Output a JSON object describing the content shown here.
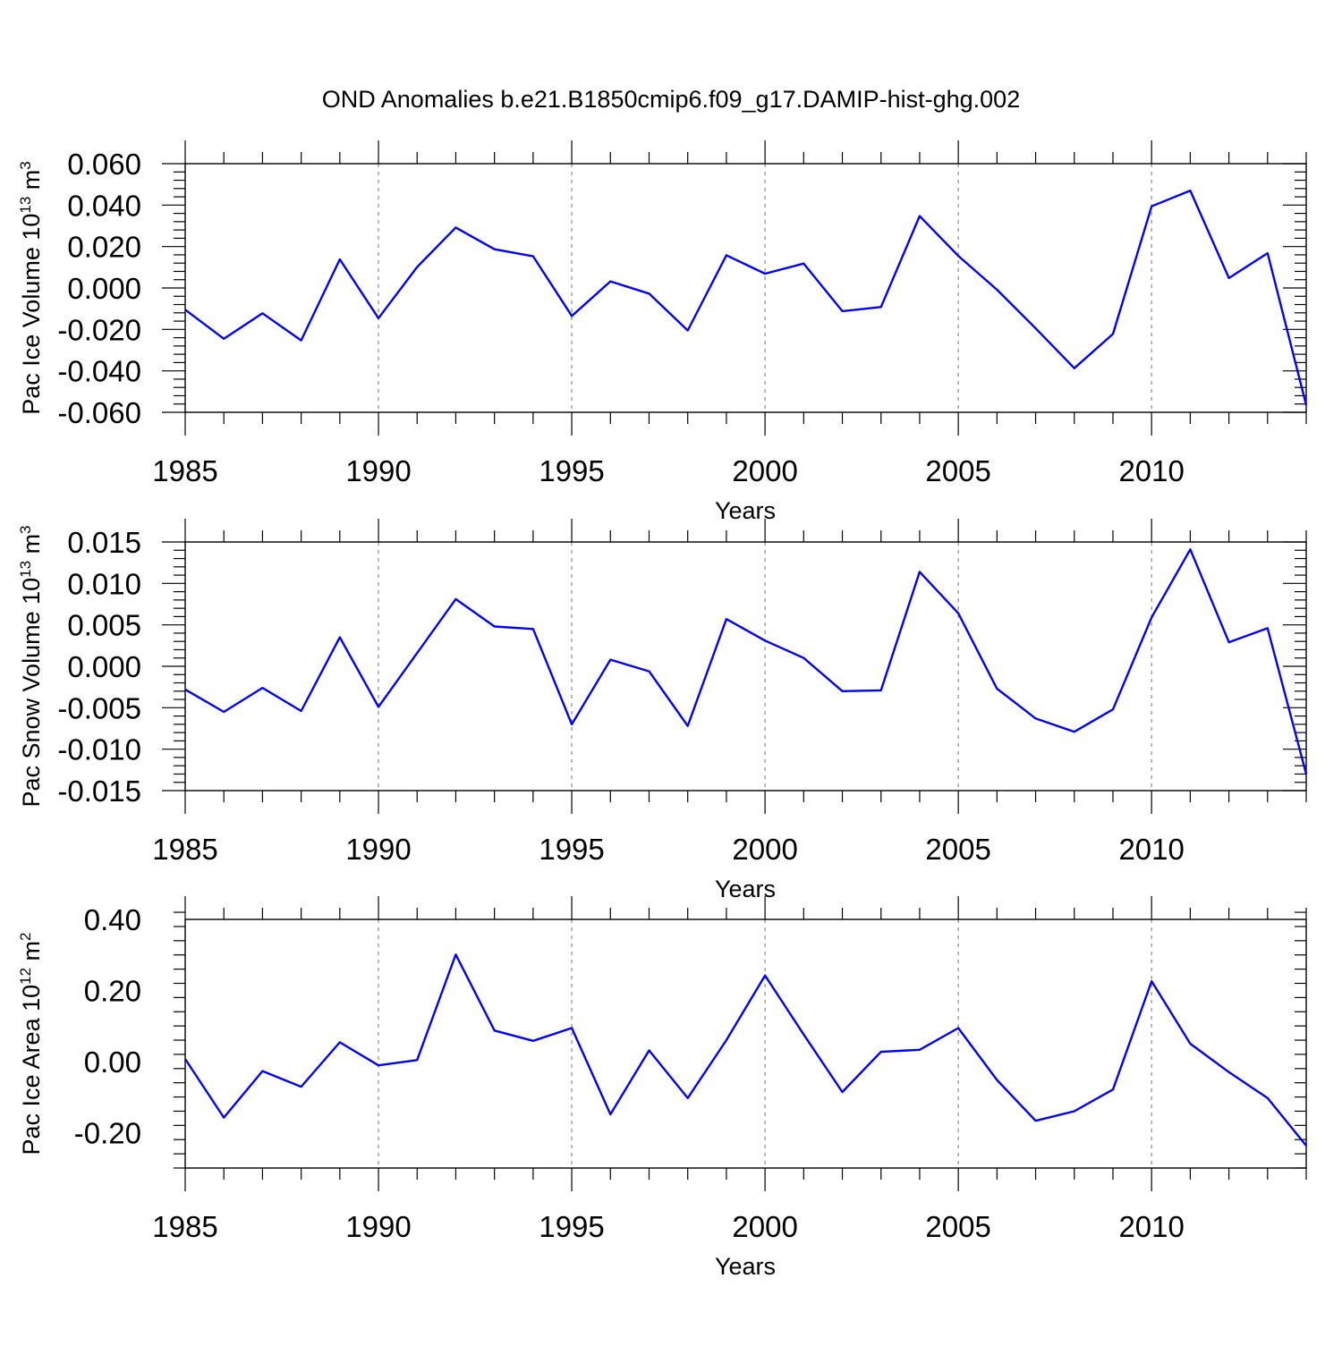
{
  "title": "OND Anomalies b.e21.B1850cmip6.f09_g17.DAMIP-hist-ghg.002",
  "line_color": "#0000ff",
  "chart_data": [
    {
      "type": "line",
      "ylabel_main": "Pac Ice Volume 10",
      "ylabel_exp": "13",
      "ylabel_unit": " m",
      "ylabel_unit_exp": "3",
      "xlabel": "Years",
      "xlim": [
        1985,
        2014
      ],
      "ylim": [
        -0.06,
        0.06
      ],
      "grid": "vertical dashed at major x ticks",
      "xticks": [
        1985,
        1990,
        1995,
        2000,
        2005,
        2010
      ],
      "xtick_labels": [
        "1985",
        "1990",
        "1995",
        "2000",
        "2005",
        "2010"
      ],
      "yticks": [
        0.06,
        0.04,
        0.02,
        0.0,
        -0.02,
        -0.04,
        -0.06
      ],
      "ytick_labels": [
        "0.060",
        "0.040",
        "0.020",
        "0.000",
        "-0.020",
        "-0.040",
        "-0.060"
      ],
      "x": [
        1985,
        1986,
        1987,
        1988,
        1989,
        1990,
        1991,
        1992,
        1993,
        1994,
        1995,
        1996,
        1997,
        1998,
        1999,
        2000,
        2001,
        2002,
        2003,
        2004,
        2005,
        2006,
        2007,
        2008,
        2009,
        2010,
        2011,
        2012,
        2013,
        2014
      ],
      "y": [
        -0.0105,
        -0.0245,
        -0.0122,
        -0.0253,
        0.0138,
        -0.0146,
        0.0101,
        0.0292,
        0.0187,
        0.0153,
        -0.0135,
        0.0032,
        -0.0027,
        -0.0205,
        0.0158,
        0.0069,
        0.0118,
        -0.0112,
        -0.0092,
        0.0347,
        0.0155,
        -0.0008,
        -0.0195,
        -0.0387,
        -0.0222,
        0.0394,
        0.047,
        0.0048,
        0.0168,
        -0.0565
      ]
    },
    {
      "type": "line",
      "ylabel_main": "Pac Snow Volume 10",
      "ylabel_exp": "13",
      "ylabel_unit": " m",
      "ylabel_unit_exp": "3",
      "xlabel": "Years",
      "xlim": [
        1985,
        2014
      ],
      "ylim": [
        -0.015,
        0.015
      ],
      "grid": "vertical dashed at major x ticks",
      "xticks": [
        1985,
        1990,
        1995,
        2000,
        2005,
        2010
      ],
      "xtick_labels": [
        "1985",
        "1990",
        "1995",
        "2000",
        "2005",
        "2010"
      ],
      "yticks": [
        0.015,
        0.01,
        0.005,
        0.0,
        -0.005,
        -0.01,
        -0.015
      ],
      "ytick_labels": [
        "0.015",
        "0.010",
        "0.005",
        "0.000",
        "-0.005",
        "-0.010",
        "-0.015"
      ],
      "x": [
        1985,
        1986,
        1987,
        1988,
        1989,
        1990,
        1991,
        1992,
        1993,
        1994,
        1995,
        1996,
        1997,
        1998,
        1999,
        2000,
        2001,
        2002,
        2003,
        2004,
        2005,
        2006,
        2007,
        2008,
        2009,
        2010,
        2011,
        2012,
        2013,
        2014
      ],
      "y": [
        -0.0028,
        -0.0055,
        -0.0026,
        -0.0054,
        0.0035,
        -0.0049,
        0.0016,
        0.0081,
        0.0048,
        0.0045,
        -0.007,
        0.0008,
        -0.0006,
        -0.0072,
        0.0057,
        0.0031,
        0.001,
        -0.003,
        -0.0029,
        0.0114,
        0.0064,
        -0.0027,
        -0.0063,
        -0.0079,
        -0.0052,
        0.0059,
        0.0141,
        0.0029,
        0.0046,
        -0.013
      ]
    },
    {
      "type": "line",
      "ylabel_main": "Pac Ice Area 10",
      "ylabel_exp": "12",
      "ylabel_unit": " m",
      "ylabel_unit_exp": "2",
      "xlabel": "Years",
      "xlim": [
        1985,
        2014
      ],
      "ylim": [
        -0.3,
        0.4
      ],
      "grid": "vertical dashed at major x ticks",
      "xticks": [
        1985,
        1990,
        1995,
        2000,
        2005,
        2010
      ],
      "xtick_labels": [
        "1985",
        "1990",
        "1995",
        "2000",
        "2005",
        "2010"
      ],
      "yticks": [
        0.4,
        0.2,
        0.0,
        -0.2
      ],
      "ytick_labels": [
        "0.40",
        "0.20",
        "0.00",
        "-0.20"
      ],
      "x": [
        1985,
        1986,
        1987,
        1988,
        1989,
        1990,
        1991,
        1992,
        1993,
        1994,
        1995,
        1996,
        1997,
        1998,
        1999,
        2000,
        2001,
        2002,
        2003,
        2004,
        2005,
        2006,
        2007,
        2008,
        2009,
        2010,
        2011,
        2012,
        2013,
        2014
      ],
      "y": [
        0.007,
        -0.158,
        -0.027,
        -0.071,
        0.054,
        -0.011,
        0.004,
        0.301,
        0.087,
        0.058,
        0.094,
        -0.149,
        0.031,
        -0.103,
        0.06,
        0.242,
        0.076,
        -0.086,
        0.027,
        0.033,
        0.094,
        -0.052,
        -0.167,
        -0.14,
        -0.079,
        0.226,
        0.05,
        -0.03,
        -0.103,
        -0.237
      ]
    }
  ]
}
